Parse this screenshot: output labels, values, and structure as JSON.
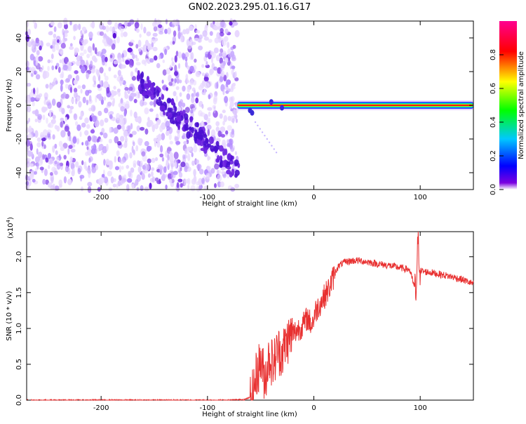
{
  "title": "GN02.2023.295.01.16.G17",
  "chart_data": [
    {
      "type": "heatmap",
      "xlabel": "Height of straight line (km)",
      "ylabel": "Frequency (Hz)",
      "xlim": [
        -270,
        150
      ],
      "ylim": [
        -50,
        50
      ],
      "xticks": [
        -200,
        -100,
        0,
        100
      ],
      "yticks": [
        -40,
        -20,
        0,
        20,
        40
      ],
      "colorbar": {
        "label": "Normalized spectral amplitude",
        "range": [
          0,
          1
        ],
        "ticks": [
          "0.0",
          "0.2",
          "0.4",
          "0.6",
          "0.8"
        ],
        "tick_values": [
          0,
          0.2,
          0.4,
          0.6,
          0.8
        ]
      },
      "regions": {
        "noise_x_range": [
          -270,
          -72
        ],
        "signal_x_range": [
          -72,
          150
        ],
        "signal_frequency_hz": 0
      },
      "colors": [
        "#6a00d8",
        "#0000ff",
        "#00c0ff",
        "#00ff00",
        "#ffff00",
        "#ff0000",
        "#ff0080"
      ]
    },
    {
      "type": "line",
      "xlabel": "Height of straight line (km)",
      "ylabel": "SNR (10 * v/v)",
      "y_multiplier": "(x10",
      "y_multiplier_exp": "4",
      "y_multiplier_close": ")",
      "xlim": [
        -270,
        150
      ],
      "ylim": [
        0,
        2.35
      ],
      "xticks": [
        -200,
        -100,
        0,
        100
      ],
      "yticks": [
        "0.0",
        "0.5",
        "1.0",
        "1.5",
        "2.0"
      ],
      "ytick_values": [
        0,
        0.5,
        1.0,
        1.5,
        2.0
      ],
      "series": [
        {
          "color": "#e83030",
          "x": [
            -270,
            -230,
            -190,
            -150,
            -110,
            -80,
            -65,
            -58,
            -54,
            -50,
            -46,
            -42,
            -38,
            -34,
            -30,
            -26,
            -22,
            -18,
            -14,
            -10,
            -6,
            -2,
            2,
            6,
            10,
            14,
            18,
            22,
            26,
            30,
            40,
            50,
            60,
            70,
            80,
            90,
            96,
            98,
            100,
            110,
            120,
            130,
            140,
            150
          ],
          "y": [
            0.0,
            0.0,
            0.0,
            0.0,
            0.0,
            0.0,
            0.01,
            0.05,
            0.35,
            0.55,
            0.3,
            0.6,
            0.5,
            0.7,
            0.65,
            0.8,
            0.9,
            0.95,
            1.0,
            1.05,
            1.15,
            1.05,
            1.25,
            1.35,
            1.45,
            1.55,
            1.7,
            1.85,
            1.9,
            1.93,
            1.95,
            1.93,
            1.9,
            1.88,
            1.85,
            1.82,
            1.5,
            2.25,
            1.8,
            1.78,
            1.75,
            1.72,
            1.68,
            1.62
          ]
        }
      ]
    }
  ]
}
